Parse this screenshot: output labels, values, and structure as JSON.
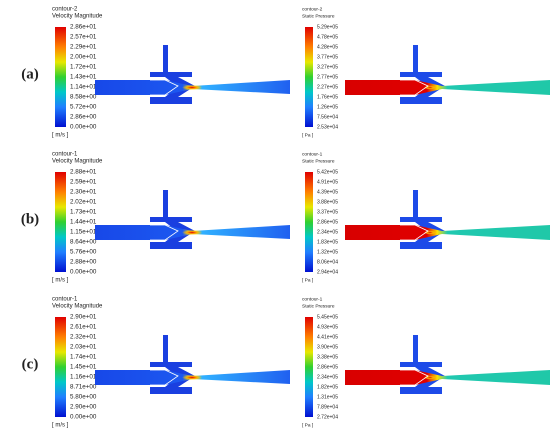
{
  "panels": [
    {
      "label": "(a)",
      "velocity": {
        "contour": "contour-2",
        "quantity": "Velocity Magnitude",
        "unit": "[ m/s ]",
        "ticks": [
          "2.86e+01",
          "2.57e+01",
          "2.29e+01",
          "2.00e+01",
          "1.72e+01",
          "1.43e+01",
          "1.14e+01",
          "8.58e+00",
          "5.72e+00",
          "2.86e+00",
          "0.00e+00"
        ]
      },
      "pressure": {
        "contour": "contour-2",
        "quantity": "Static Pressure",
        "unit": "[ Pa ]",
        "ticks": [
          "5.29e+05",
          "4.78e+05",
          "4.28e+05",
          "3.77e+05",
          "3.27e+05",
          "2.77e+05",
          "2.27e+05",
          "1.76e+05",
          "1.26e+05",
          "7.56e+04",
          "2.53e+04"
        ]
      }
    },
    {
      "label": "(b)",
      "velocity": {
        "contour": "contour-1",
        "quantity": "Velocity Magnitude",
        "unit": "[ m/s ]",
        "ticks": [
          "2.88e+01",
          "2.59e+01",
          "2.30e+01",
          "2.02e+01",
          "1.73e+01",
          "1.44e+01",
          "1.15e+01",
          "8.64e+00",
          "5.76e+00",
          "2.88e+00",
          "0.00e+00"
        ]
      },
      "pressure": {
        "contour": "contour-1",
        "quantity": "Static Pressure",
        "unit": "[ Pa ]",
        "ticks": [
          "5.42e+05",
          "4.91e+05",
          "4.39e+05",
          "3.88e+05",
          "3.37e+05",
          "2.86e+05",
          "2.34e+05",
          "1.83e+05",
          "1.32e+05",
          "8.06e+04",
          "2.94e+04"
        ]
      }
    },
    {
      "label": "(c)",
      "velocity": {
        "contour": "contour-1",
        "quantity": "Velocity Magnitude",
        "unit": "[ m/s ]",
        "ticks": [
          "2.90e+01",
          "2.61e+01",
          "2.32e+01",
          "2.03e+01",
          "1.74e+01",
          "1.45e+01",
          "1.16e+01",
          "8.71e+00",
          "5.80e+00",
          "2.90e+00",
          "0.00e+00"
        ]
      },
      "pressure": {
        "contour": "contour-1",
        "quantity": "Static Pressure",
        "unit": "[ Pa ]",
        "ticks": [
          "5.45e+05",
          "4.93e+05",
          "4.41e+05",
          "3.90e+05",
          "3.38e+05",
          "2.86e+05",
          "2.34e+05",
          "1.82e+05",
          "1.31e+05",
          "7.89e+04",
          "2.72e+04"
        ]
      }
    }
  ]
}
